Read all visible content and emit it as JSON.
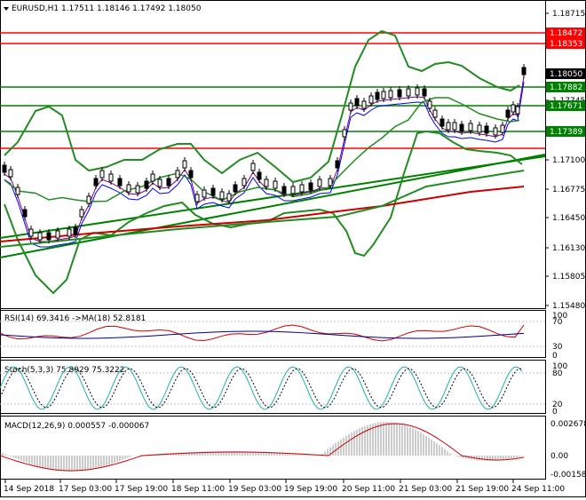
{
  "main_header": "EURUSD,H1  1.17511 1.18146 1.17492 1.18050",
  "rsi_header": "RSI(14) 69.3416  ->MA(18) 52.8181",
  "stoch_header": "Stoch(5,3,3) 75.8929 75.3222",
  "macd_header": "MACD(12,26,9) 0.000557 -0.000067",
  "price_axis": [
    "1.18715",
    "1.18050",
    "1.17745",
    "1.17100",
    "1.16775",
    "1.16450",
    "1.16130",
    "1.15805",
    "1.15480"
  ],
  "level_badges": [
    {
      "value": "1.18472",
      "color": "#ff0000"
    },
    {
      "value": "1.18353",
      "color": "#ff0000"
    },
    {
      "value": "1.18050",
      "color": "#000000"
    },
    {
      "value": "1.17882",
      "color": "#008000"
    },
    {
      "value": "1.17671",
      "color": "#008000"
    },
    {
      "value": "1.17389",
      "color": "#008000"
    }
  ],
  "rsi_axis": [
    "100",
    "70",
    "30",
    "0"
  ],
  "stoch_axis": [
    "100",
    "80",
    "20",
    "0"
  ],
  "macd_axis": [
    "0.002678",
    "0.00",
    "-0.001582"
  ],
  "time_axis": [
    "14 Sep 2018",
    "17 Sep 03:00",
    "17 Sep 19:00",
    "18 Sep 11:00",
    "19 Sep 03:00",
    "19 Sep 19:00",
    "20 Sep 11:00",
    "21 Sep 03:00",
    "21 Sep 19:00",
    "24 Sep 11:00"
  ],
  "colors": {
    "support": "#008000",
    "resistance": "#ff0000",
    "bands": "#228b22",
    "ma_slow": "#cc0000",
    "ma_fast": "#0000ff",
    "rsi": "#000080",
    "rsi_ma": "#cc0000",
    "stoch_main": "#20b2aa",
    "macd_signal": "#cc0000",
    "macd_hist": "#999999"
  }
}
